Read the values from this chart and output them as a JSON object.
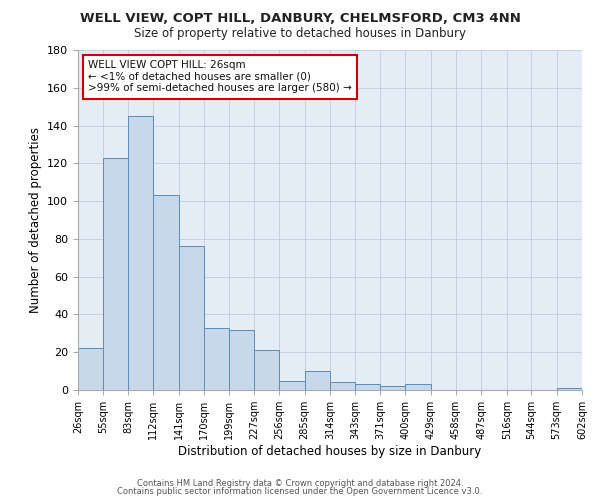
{
  "title": "WELL VIEW, COPT HILL, DANBURY, CHELMSFORD, CM3 4NN",
  "subtitle": "Size of property relative to detached houses in Danbury",
  "xlabel": "Distribution of detached houses by size in Danbury",
  "ylabel": "Number of detached properties",
  "bar_color": "#c8d8eb",
  "bar_edge_color": "#5b8db8",
  "background_color": "#ffffff",
  "plot_bg_color": "#e4edf5",
  "grid_color": "#c0ccd8",
  "annotation_box_edge": "#cc0000",
  "annotation_lines": [
    "WELL VIEW COPT HILL: 26sqm",
    "← <1% of detached houses are smaller (0)",
    ">99% of semi-detached houses are larger (580) →"
  ],
  "bins": [
    26,
    55,
    83,
    112,
    141,
    170,
    199,
    227,
    256,
    285,
    314,
    343,
    371,
    400,
    429,
    458,
    487,
    516,
    544,
    573,
    602
  ],
  "counts": [
    22,
    123,
    145,
    103,
    76,
    33,
    32,
    21,
    5,
    10,
    4,
    3,
    2,
    3,
    0,
    0,
    0,
    0,
    0,
    1
  ],
  "ylim": [
    0,
    180
  ],
  "yticks": [
    0,
    20,
    40,
    60,
    80,
    100,
    120,
    140,
    160,
    180
  ],
  "footer_line1": "Contains HM Land Registry data © Crown copyright and database right 2024.",
  "footer_line2": "Contains public sector information licensed under the Open Government Licence v3.0."
}
